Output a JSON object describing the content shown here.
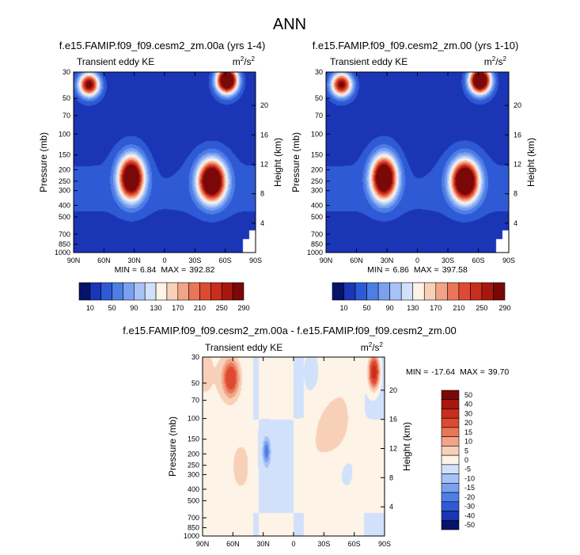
{
  "figure": {
    "title": "ANN"
  },
  "chart_data": [
    {
      "type": "heatmap",
      "title": "f.e15.FAMIP.f09_f09.cesm2_zm.00a (yrs 1-4)",
      "field": "Transient eddy KE",
      "units_base": "m",
      "units_sup1": "2",
      "units_mid": "/s",
      "units_sup2": "2",
      "xlabel": "",
      "ylabel": "Pressure (mb)",
      "ylabel_right": "Height (km)",
      "x_ticks": [
        "90N",
        "60N",
        "30N",
        "0",
        "30S",
        "60S",
        "90S"
      ],
      "p_ticks": [
        30,
        50,
        70,
        100,
        150,
        200,
        250,
        300,
        400,
        500,
        700,
        850,
        1000
      ],
      "height_ticks": [
        4,
        8,
        12,
        16,
        20
      ],
      "min_label": "MIN =",
      "min_value": "6.84",
      "max_label": "MAX =",
      "max_value": "392.82",
      "colorbar_labels": [
        "10",
        "50",
        "90",
        "130",
        "170",
        "210",
        "250",
        "290"
      ],
      "colorbar_colors": [
        "#06136b",
        "#1a35b5",
        "#2f5ad6",
        "#4d7ee6",
        "#7ba0f0",
        "#a8c2f7",
        "#d2e1fb",
        "#fdf3e7",
        "#f8d0b8",
        "#f2a487",
        "#eb7559",
        "#dd4a32",
        "#c92d1d",
        "#a8170e",
        "#7b0808"
      ],
      "maxima": [
        {
          "lat": 75,
          "p": 38,
          "value": 280,
          "sx": 10,
          "sp": 0.22
        },
        {
          "lat": -62,
          "p": 35,
          "value": 392.8,
          "sx": 10,
          "sp": 0.24
        },
        {
          "lat": 33,
          "p": 235,
          "value": 360,
          "sx": 12,
          "sp": 0.4
        },
        {
          "lat": -47,
          "p": 250,
          "value": 380,
          "sx": 13,
          "sp": 0.38
        }
      ]
    },
    {
      "type": "heatmap",
      "title": "f.e15.FAMIP.f09_f09.cesm2_zm.00 (yrs 1-10)",
      "field": "Transient eddy KE",
      "units_base": "m",
      "units_sup1": "2",
      "units_mid": "/s",
      "units_sup2": "2",
      "xlabel": "",
      "ylabel": "Pressure (mb)",
      "ylabel_right": "Height (km)",
      "x_ticks": [
        "90N",
        "60N",
        "30N",
        "0",
        "30S",
        "60S",
        "90S"
      ],
      "p_ticks": [
        30,
        50,
        70,
        100,
        150,
        200,
        250,
        300,
        400,
        500,
        700,
        850,
        1000
      ],
      "height_ticks": [
        4,
        8,
        12,
        16,
        20
      ],
      "min_label": "MIN =",
      "min_value": "6.86",
      "max_label": "MAX =",
      "max_value": "397.58",
      "colorbar_labels": [
        "10",
        "50",
        "90",
        "130",
        "170",
        "210",
        "250",
        "290"
      ],
      "colorbar_colors": [
        "#06136b",
        "#1a35b5",
        "#2f5ad6",
        "#4d7ee6",
        "#7ba0f0",
        "#a8c2f7",
        "#d2e1fb",
        "#fdf3e7",
        "#f8d0b8",
        "#f2a487",
        "#eb7559",
        "#dd4a32",
        "#c92d1d",
        "#a8170e",
        "#7b0808"
      ],
      "maxima": [
        {
          "lat": 75,
          "p": 38,
          "value": 270,
          "sx": 10,
          "sp": 0.22
        },
        {
          "lat": -62,
          "p": 35,
          "value": 397.6,
          "sx": 10,
          "sp": 0.24
        },
        {
          "lat": 33,
          "p": 235,
          "value": 365,
          "sx": 12,
          "sp": 0.4
        },
        {
          "lat": -47,
          "p": 250,
          "value": 385,
          "sx": 13,
          "sp": 0.38
        }
      ]
    },
    {
      "type": "heatmap",
      "title": "f.e15.FAMIP.f09_f09.cesm2_zm.00a - f.e15.FAMIP.f09_f09.cesm2_zm.00",
      "field": "Transient eddy KE",
      "units_base": "m",
      "units_sup1": "2",
      "units_mid": "/s",
      "units_sup2": "2",
      "xlabel": "",
      "ylabel": "Pressure (mb)",
      "ylabel_right": "Height (km)",
      "x_ticks": [
        "90N",
        "60N",
        "30N",
        "0",
        "30S",
        "60S",
        "90S"
      ],
      "p_ticks": [
        30,
        50,
        70,
        100,
        150,
        200,
        250,
        300,
        400,
        500,
        700,
        850,
        1000
      ],
      "height_ticks": [
        4,
        8,
        12,
        16,
        20
      ],
      "min_label": "MIN =",
      "min_value": "-17.64",
      "max_label": "MAX =",
      "max_value": "39.70",
      "colorbar_labels": [
        "50",
        "40",
        "30",
        "20",
        "15",
        "10",
        "5",
        "0",
        "-5",
        "-10",
        "-15",
        "-20",
        "-30",
        "-40",
        "-50"
      ],
      "colorbar_colors": [
        "#7b0808",
        "#a8170e",
        "#c92d1d",
        "#dd4a32",
        "#eb7559",
        "#f2a487",
        "#f8d0b8",
        "#fdf3e7",
        "#d2e1fb",
        "#a8c2f7",
        "#7ba0f0",
        "#4d7ee6",
        "#2f5ad6",
        "#1a35b5",
        "#06136b"
      ],
      "maxima": [
        {
          "lat": 62,
          "p": 45,
          "value": 28,
          "sx": 8,
          "sp": 0.35
        },
        {
          "lat": -80,
          "p": 40,
          "value": 39.7,
          "sx": 5,
          "sp": 0.3
        },
        {
          "lat": 27,
          "p": 190,
          "value": -17.6,
          "sx": 3.5,
          "sp": 0.25
        },
        {
          "lat": -40,
          "p": 120,
          "value": 8,
          "sx": 15,
          "sp": 0.5
        }
      ]
    }
  ]
}
